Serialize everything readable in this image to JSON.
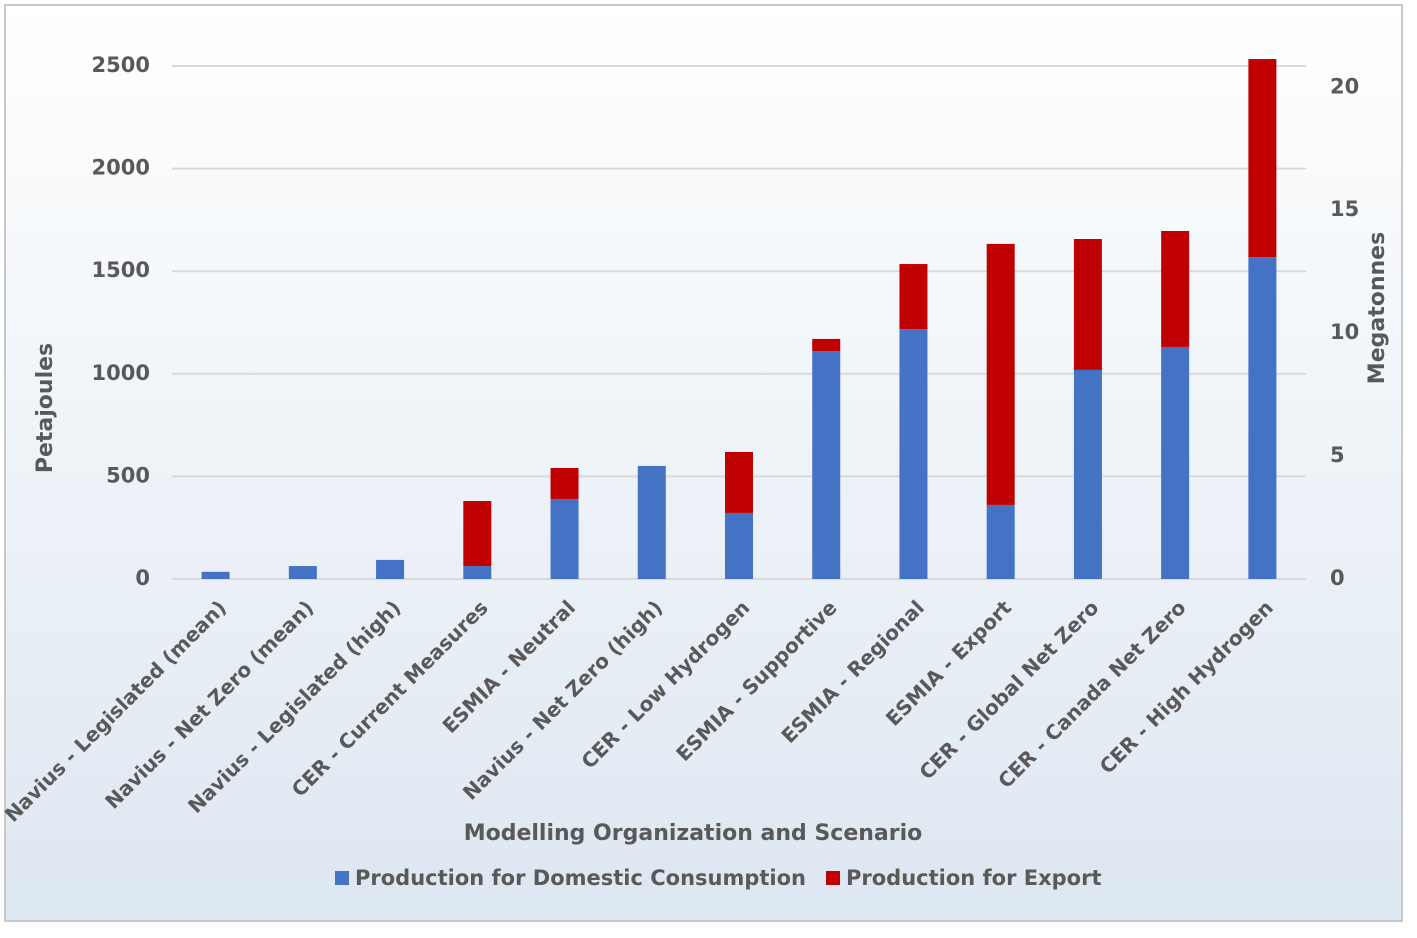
{
  "chart_data": {
    "type": "stacked_bar",
    "y_label": "Petajoules",
    "y2_label": "Megatonnes",
    "x_label": "Modelling Organization  and Scenario",
    "categories": [
      "Navius - Legislated (mean)",
      "Navius - Net Zero (mean)",
      "Navius - Legislated (high)",
      "CER - Current Measures",
      "ESMIA - Neutral",
      "Navius - Net Zero (high)",
      "CER - Low Hydrogen",
      "ESMIA - Supportive",
      "ESMIA - Regional",
      "ESMIA - Export",
      "CER - Global Net Zero",
      "CER - Canada Net Zero",
      "CER - High Hydrogen"
    ],
    "series": [
      {
        "name": "Production for Domestic Consumption",
        "color": "#4472c4",
        "values": [
          35,
          63,
          93,
          63,
          390,
          551,
          322,
          1111,
          1218,
          361,
          1019,
          1131,
          1569
        ]
      },
      {
        "name": "Production for Export",
        "color": "#c00000",
        "values": [
          0,
          0,
          0,
          317,
          151,
          0,
          297,
          59,
          317,
          1272,
          638,
          565,
          965
        ]
      }
    ],
    "ylim": [
      0,
      2600
    ],
    "yticks": [
      0,
      500,
      1000,
      1500,
      2000,
      2500
    ],
    "y2lim": [
      0,
      21.7
    ],
    "y2ticks": [
      0,
      5,
      10,
      15,
      20
    ],
    "grid": true,
    "legend": "bottom"
  }
}
